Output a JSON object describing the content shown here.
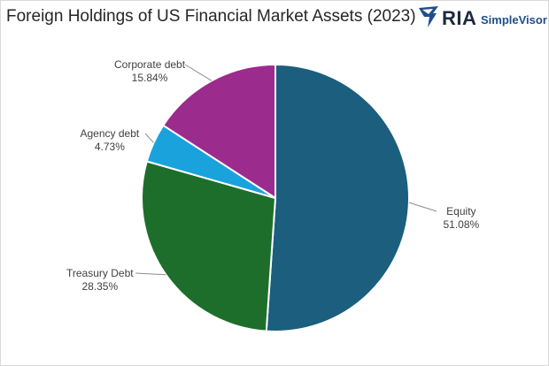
{
  "header": {
    "title": "Foreign Holdings of US Financial Market Assets (2023)",
    "logo_text": "RIA",
    "logo_subtext": "SimpleVisor"
  },
  "chart_data": {
    "type": "pie",
    "title": "Foreign Holdings of US Financial Market Assets (2023)",
    "slices": [
      {
        "label": "Equity",
        "value": 51.08,
        "value_label": "51.08%",
        "color": "#1b5e7e"
      },
      {
        "label": "Treasury Debt",
        "value": 28.35,
        "value_label": "28.35%",
        "color": "#1e6e2b"
      },
      {
        "label": "Agency debt",
        "value": 4.73,
        "value_label": "4.73%",
        "color": "#1aa2dc"
      },
      {
        "label": "Corporate debt",
        "value": 15.84,
        "value_label": "15.84%",
        "color": "#9c2b8e"
      }
    ],
    "start_angle": "12 o'clock",
    "direction": "clockwise",
    "legend": "none",
    "data_labels": "outside with leader lines"
  }
}
